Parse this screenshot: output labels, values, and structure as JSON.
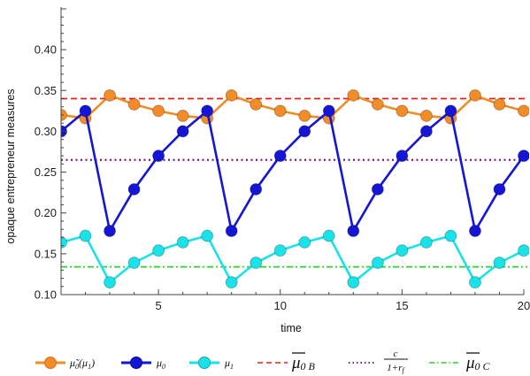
{
  "chart_data": {
    "type": "line",
    "title": "",
    "xlabel": "time",
    "ylabel": "opaque entrepreneur measures",
    "xlim": [
      1,
      20
    ],
    "ylim": [
      0.1,
      0.45
    ],
    "xticks": [
      5,
      10,
      15,
      20
    ],
    "yticks": [
      0.1,
      0.15,
      0.2,
      0.25,
      0.3,
      0.35,
      0.4
    ],
    "ytick_labels": [
      "0.10",
      "0.15",
      "0.20",
      "0.25",
      "0.30",
      "0.35",
      "0.40"
    ],
    "grid": false,
    "legend_position": "bottom",
    "x": [
      1,
      2,
      3,
      4,
      5,
      6,
      7,
      8,
      9,
      10,
      11,
      12,
      13,
      14,
      15,
      16,
      17,
      18,
      19,
      20
    ],
    "series": [
      {
        "name": "μ̃₀(μ₁)",
        "kind": "line-markers",
        "color": "#f28c28",
        "values": [
          0.32,
          0.316,
          0.344,
          0.333,
          0.325,
          0.319,
          0.316,
          0.344,
          0.333,
          0.325,
          0.319,
          0.316,
          0.344,
          0.333,
          0.325,
          0.319,
          0.316,
          0.344,
          0.333,
          0.325
        ]
      },
      {
        "name": "μ₀",
        "kind": "line-markers",
        "color": "#1515d6",
        "values": [
          0.3,
          0.325,
          0.178,
          0.229,
          0.27,
          0.3,
          0.325,
          0.178,
          0.229,
          0.27,
          0.3,
          0.325,
          0.178,
          0.229,
          0.27,
          0.3,
          0.325,
          0.178,
          0.229,
          0.27
        ]
      },
      {
        "name": "μ₁",
        "kind": "line-markers",
        "color": "#19e3e8",
        "values": [
          0.164,
          0.172,
          0.115,
          0.139,
          0.154,
          0.164,
          0.172,
          0.115,
          0.139,
          0.154,
          0.164,
          0.172,
          0.115,
          0.139,
          0.154,
          0.164,
          0.172,
          0.115,
          0.139,
          0.154
        ]
      },
      {
        "name": "μ̄0 B",
        "kind": "hline",
        "style": "dashed",
        "color": "#e8201c",
        "value": 0.34
      },
      {
        "name": "c / (1+r_f)",
        "kind": "hline",
        "style": "dotted",
        "color": "#7a1c7a",
        "value": 0.265
      },
      {
        "name": "μ̄0 C",
        "kind": "hline",
        "style": "dashdot",
        "color": "#2bd42b",
        "value": 0.134
      }
    ]
  },
  "legend": {
    "mu_tilde": {
      "sym": "μ̃",
      "sub": "0",
      "open": "(",
      "arg": "μ",
      "argsub": "1",
      "close": ")"
    },
    "mu0": {
      "sym": "μ",
      "sub": "0"
    },
    "mu1": {
      "sym": "μ",
      "sub": "1"
    },
    "mu_bar_b": {
      "sym": "μ",
      "sub": "0 B"
    },
    "c_ratio": {
      "num": "c",
      "den": "1+r",
      "densub": "f"
    },
    "mu_bar_c": {
      "sym": "μ",
      "sub": "0 C"
    }
  }
}
